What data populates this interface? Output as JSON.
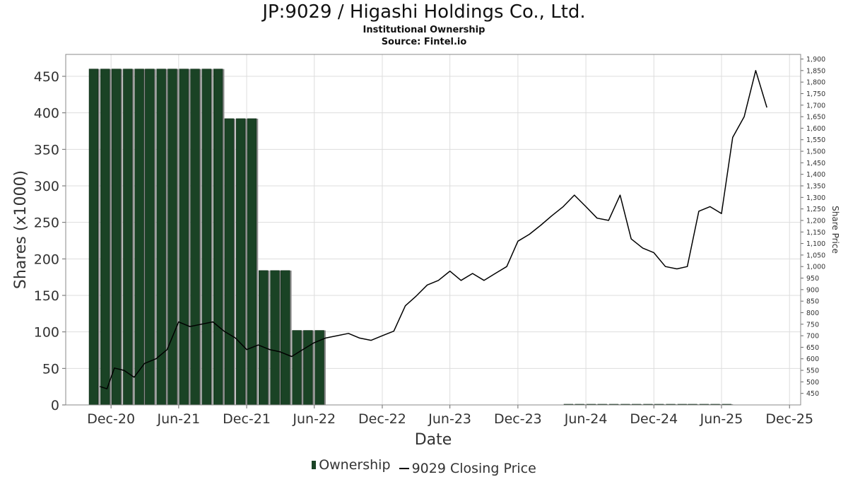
{
  "chart_data": {
    "type": "bar+line",
    "title": "JP:9029 / Higashi Holdings Co., Ltd.",
    "subtitle": "Institutional Ownership",
    "source": "Source: Fintel.io",
    "xlabel": "Date",
    "ylabel": "Shares (x1000)",
    "ylabel_right": "Share Price",
    "xlim": [
      "2020-08-01",
      "2025-12-31"
    ],
    "ylim": [
      0,
      480
    ],
    "ylim_right": [
      400,
      1920
    ],
    "x_ticks": [
      {
        "date": "2020-12-01",
        "label": "Dec-20"
      },
      {
        "date": "2021-06-01",
        "label": "Jun-21"
      },
      {
        "date": "2021-12-01",
        "label": "Dec-21"
      },
      {
        "date": "2022-06-01",
        "label": "Jun-22"
      },
      {
        "date": "2022-12-01",
        "label": "Dec-22"
      },
      {
        "date": "2023-06-01",
        "label": "Jun-23"
      },
      {
        "date": "2023-12-01",
        "label": "Dec-23"
      },
      {
        "date": "2024-06-01",
        "label": "Jun-24"
      },
      {
        "date": "2024-12-01",
        "label": "Dec-24"
      },
      {
        "date": "2025-06-01",
        "label": "Jun-25"
      },
      {
        "date": "2025-12-01",
        "label": "Dec-25"
      }
    ],
    "y_ticks": [
      "0",
      "50",
      "100",
      "150",
      "200",
      "250",
      "300",
      "350",
      "400",
      "450"
    ],
    "y_ticks_right": [
      "450",
      "500",
      "550",
      "600",
      "650",
      "700",
      "750",
      "800",
      "850",
      "900",
      "950",
      "1,000",
      "1,050",
      "1,100",
      "1,150",
      "1,200",
      "1,250",
      "1,300",
      "1,350",
      "1,400",
      "1,450",
      "1,500",
      "1,550",
      "1,600",
      "1,650",
      "1,700",
      "1,750",
      "1,800",
      "1,850",
      "1,900"
    ],
    "grid": true,
    "legend_position": "bottom",
    "colors": {
      "bar": "#1a4325",
      "bar_shadow": "#8c8c8c",
      "line": "#000000",
      "grid": "#dddddd"
    },
    "series": [
      {
        "name": "Ownership",
        "type": "bar",
        "x": [
          "2020-10-15",
          "2020-11-15",
          "2020-12-15",
          "2021-01-15",
          "2021-02-15",
          "2021-03-15",
          "2021-04-15",
          "2021-05-15",
          "2021-06-15",
          "2021-07-15",
          "2021-08-15",
          "2021-09-15",
          "2021-10-15",
          "2021-11-15",
          "2021-12-15",
          "2022-01-15",
          "2022-02-15",
          "2022-03-15",
          "2022-04-15",
          "2022-05-15",
          "2022-06-15",
          "2024-04-15",
          "2024-05-15",
          "2024-06-15",
          "2024-07-15",
          "2024-08-15",
          "2024-09-15",
          "2024-10-15",
          "2024-11-15",
          "2024-12-15",
          "2025-01-15",
          "2025-02-15",
          "2025-03-15",
          "2025-04-15",
          "2025-05-15",
          "2025-06-15"
        ],
        "values": [
          460,
          460,
          460,
          460,
          460,
          460,
          460,
          460,
          460,
          460,
          460,
          460,
          392,
          392,
          392,
          184,
          184,
          184,
          102,
          102,
          102,
          0.5,
          0.5,
          0.5,
          0.5,
          0.5,
          0.5,
          0.5,
          0.5,
          0.5,
          0.5,
          0.5,
          0.5,
          0.5,
          0.5,
          0.5
        ]
      },
      {
        "name": "9029 Closing Price",
        "type": "line",
        "axis": "right",
        "x": [
          "2020-11-01",
          "2020-11-20",
          "2020-12-10",
          "2021-01-05",
          "2021-02-01",
          "2021-03-01",
          "2021-04-01",
          "2021-05-01",
          "2021-06-01",
          "2021-07-01",
          "2021-08-01",
          "2021-09-01",
          "2021-10-01",
          "2021-11-01",
          "2021-12-01",
          "2022-01-01",
          "2022-02-01",
          "2022-03-01",
          "2022-04-01",
          "2022-05-01",
          "2022-06-01",
          "2022-07-01",
          "2022-08-01",
          "2022-09-01",
          "2022-10-01",
          "2022-11-01",
          "2022-12-01",
          "2023-01-01",
          "2023-02-01",
          "2023-03-01",
          "2023-04-01",
          "2023-05-01",
          "2023-06-01",
          "2023-07-01",
          "2023-08-01",
          "2023-09-01",
          "2023-10-01",
          "2023-11-01",
          "2023-12-01",
          "2024-01-01",
          "2024-02-01",
          "2024-03-01",
          "2024-04-01",
          "2024-05-01",
          "2024-06-01",
          "2024-07-01",
          "2024-08-01",
          "2024-09-01",
          "2024-10-01",
          "2024-11-01",
          "2024-12-01",
          "2025-01-01",
          "2025-02-01",
          "2025-03-01",
          "2025-04-01",
          "2025-05-01",
          "2025-06-01",
          "2025-07-01",
          "2025-08-01",
          "2025-09-01",
          "2025-10-01"
        ],
        "values": [
          480,
          470,
          560,
          550,
          520,
          580,
          600,
          640,
          760,
          740,
          750,
          760,
          720,
          690,
          640,
          660,
          640,
          630,
          610,
          640,
          670,
          690,
          700,
          710,
          690,
          680,
          700,
          720,
          830,
          870,
          920,
          940,
          980,
          940,
          970,
          940,
          970,
          1000,
          1110,
          1140,
          1180,
          1220,
          1260,
          1310,
          1260,
          1210,
          1200,
          1310,
          1120,
          1080,
          1060,
          1000,
          990,
          1000,
          1240,
          1260,
          1230,
          1560,
          1650,
          1850,
          1690
        ]
      }
    ]
  }
}
